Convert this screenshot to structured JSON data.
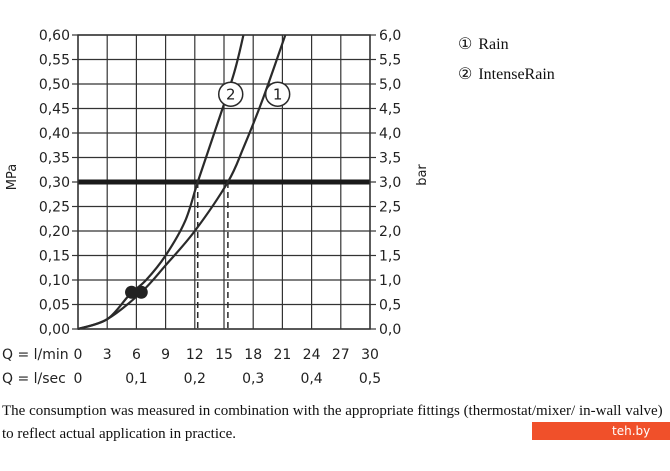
{
  "chart_data": {
    "type": "line",
    "title": "",
    "y_left": {
      "label": "MPa",
      "lim": [
        0,
        0.6
      ],
      "ticks": [
        "0,00",
        "0,05",
        "0,10",
        "0,15",
        "0,20",
        "0,25",
        "0,30",
        "0,35",
        "0,40",
        "0,45",
        "0,50",
        "0,55",
        "0,60"
      ]
    },
    "y_right": {
      "label": "bar",
      "lim": [
        0,
        6
      ],
      "ticks": [
        "0,0",
        "0,5",
        "1,0",
        "1,5",
        "2,0",
        "2,5",
        "3,0",
        "3,5",
        "4,0",
        "4,5",
        "5,0",
        "5,5",
        "6,0"
      ]
    },
    "x": {
      "lim": [
        0,
        30
      ],
      "row1_label": "Q = l/min",
      "row1_ticks": [
        "0",
        "3",
        "6",
        "9",
        "12",
        "15",
        "18",
        "21",
        "24",
        "27",
        "30"
      ],
      "row2_label": "Q = l/sec",
      "row2_ticks": [
        {
          "value": 0,
          "label": "0"
        },
        {
          "value": 6,
          "label": "0,1"
        },
        {
          "value": 12,
          "label": "0,2"
        },
        {
          "value": 18,
          "label": "0,3"
        },
        {
          "value": 24,
          "label": "0,4"
        },
        {
          "value": 30,
          "label": "0,5"
        }
      ]
    },
    "series": [
      {
        "name": "IntenseRain",
        "marker": "2",
        "values": [
          [
            0,
            0
          ],
          [
            3,
            0.02
          ],
          [
            5.3,
            0.07
          ],
          [
            7,
            0.1
          ],
          [
            9,
            0.15
          ],
          [
            11,
            0.22
          ],
          [
            12.3,
            0.3
          ],
          [
            14,
            0.4
          ],
          [
            16,
            0.52
          ],
          [
            17,
            0.6
          ]
        ]
      },
      {
        "name": "Rain",
        "marker": "1",
        "values": [
          [
            0,
            0
          ],
          [
            3,
            0.02
          ],
          [
            6.5,
            0.075
          ],
          [
            9,
            0.13
          ],
          [
            12,
            0.2
          ],
          [
            15.4,
            0.3
          ],
          [
            17,
            0.37
          ],
          [
            19,
            0.47
          ],
          [
            21.3,
            0.6
          ]
        ]
      }
    ],
    "reference_line": {
      "y": 0.3
    },
    "drop_lines": [
      12.3,
      15.4
    ],
    "markers": [
      [
        5.5,
        0.075
      ],
      [
        6.5,
        0.075
      ]
    ],
    "grid": true
  },
  "legend": [
    {
      "num": "①",
      "label": "Rain"
    },
    {
      "num": "②",
      "label": "IntenseRain"
    }
  ],
  "caption": "The consumption was measured in combination with the appropriate fittings (thermostat/mixer/ in-wall valve) to reflect actual application in practice.",
  "watermark": "teh.by",
  "colors": {
    "grid": "#333333",
    "line": "#2a2a2a",
    "watermark": "#f0502a"
  }
}
